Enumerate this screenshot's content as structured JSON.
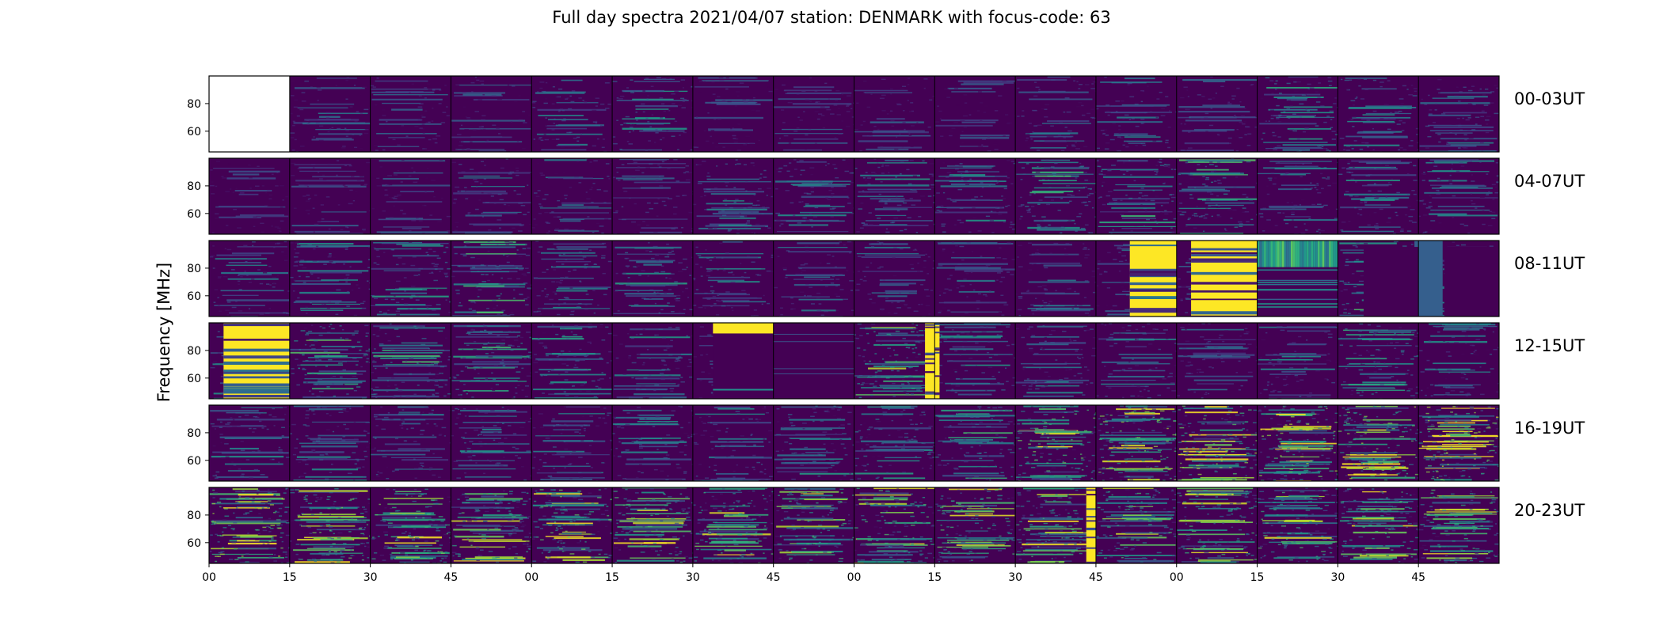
{
  "chart_data": {
    "type": "heatmap",
    "title": "Full day spectra 2021/04/07 station: DENMARK with focus-code: 63",
    "xlabel": "",
    "ylabel": "Frequency [MHz]",
    "colormap": "viridis",
    "background_color": "#440154",
    "highlight_color": "#fde725",
    "x_tick_labels": [
      "00",
      "15",
      "30",
      "45",
      "00",
      "15",
      "30",
      "45",
      "00",
      "15",
      "30",
      "45",
      "00",
      "15",
      "30",
      "45"
    ],
    "y_ticks": [
      60,
      80
    ],
    "y_range_mhz": [
      45,
      100
    ],
    "panels_per_row": 16,
    "panel_minutes": 15,
    "rows": [
      {
        "label": "00-03UT",
        "activity": [
          0,
          0.15,
          0.12,
          0.1,
          0.18,
          0.22,
          0.1,
          0.1,
          0.1,
          0.08,
          0.15,
          0.18,
          0.12,
          0.3,
          0.22,
          0.2
        ],
        "panels": [
          {
            "index": 0,
            "style": "empty"
          }
        ]
      },
      {
        "label": "04-07UT",
        "activity": [
          0.08,
          0.1,
          0.1,
          0.18,
          0.16,
          0.16,
          0.22,
          0.2,
          0.25,
          0.22,
          0.3,
          0.28,
          0.32,
          0.22,
          0.22,
          0.2
        ],
        "panels": []
      },
      {
        "label": "08-11UT",
        "activity": [
          0.18,
          0.22,
          0.25,
          0.3,
          0.2,
          0.25,
          0.2,
          0.15,
          0.15,
          0.15,
          0.15,
          0.15,
          0.15,
          0.35,
          0.3,
          0.2
        ],
        "panels": [
          {
            "index": 11,
            "style": "burst",
            "start": 0.42,
            "end": 1.0
          },
          {
            "index": 12,
            "style": "burst",
            "start": 0.18,
            "end": 1.0
          },
          {
            "index": 13,
            "style": "stripes"
          },
          {
            "index": 14,
            "style": "gap",
            "start": 0.95
          },
          {
            "index": 15,
            "style": "gap",
            "start": 0.0,
            "end": 0.3
          }
        ]
      },
      {
        "label": "12-15UT",
        "activity": [
          0.2,
          0.35,
          0.3,
          0.3,
          0.25,
          0.22,
          0.15,
          0.1,
          0.4,
          0.22,
          0.2,
          0.18,
          0.15,
          0.2,
          0.3,
          0.2
        ],
        "panels": [
          {
            "index": 0,
            "style": "burst",
            "start": 0.18,
            "end": 1.0
          },
          {
            "index": 6,
            "style": "topband",
            "start": 0.25,
            "end": 1.0
          },
          {
            "index": 7,
            "style": "dark"
          },
          {
            "index": 8,
            "style": "edge",
            "start": 0.88,
            "end": 1.0
          },
          {
            "index": 9,
            "style": "edge",
            "start": 0.0,
            "end": 0.06
          }
        ]
      },
      {
        "label": "16-19UT",
        "activity": [
          0.2,
          0.22,
          0.2,
          0.22,
          0.22,
          0.22,
          0.2,
          0.25,
          0.28,
          0.3,
          0.5,
          0.55,
          0.55,
          0.55,
          0.55,
          0.6
        ],
        "panels": []
      },
      {
        "label": "20-23UT",
        "activity": [
          0.55,
          0.5,
          0.5,
          0.45,
          0.5,
          0.45,
          0.45,
          0.45,
          0.45,
          0.45,
          0.45,
          0.45,
          0.45,
          0.45,
          0.45,
          0.45
        ],
        "panels": [
          {
            "index": 10,
            "style": "edge",
            "start": 0.88,
            "end": 1.0
          }
        ]
      }
    ]
  }
}
